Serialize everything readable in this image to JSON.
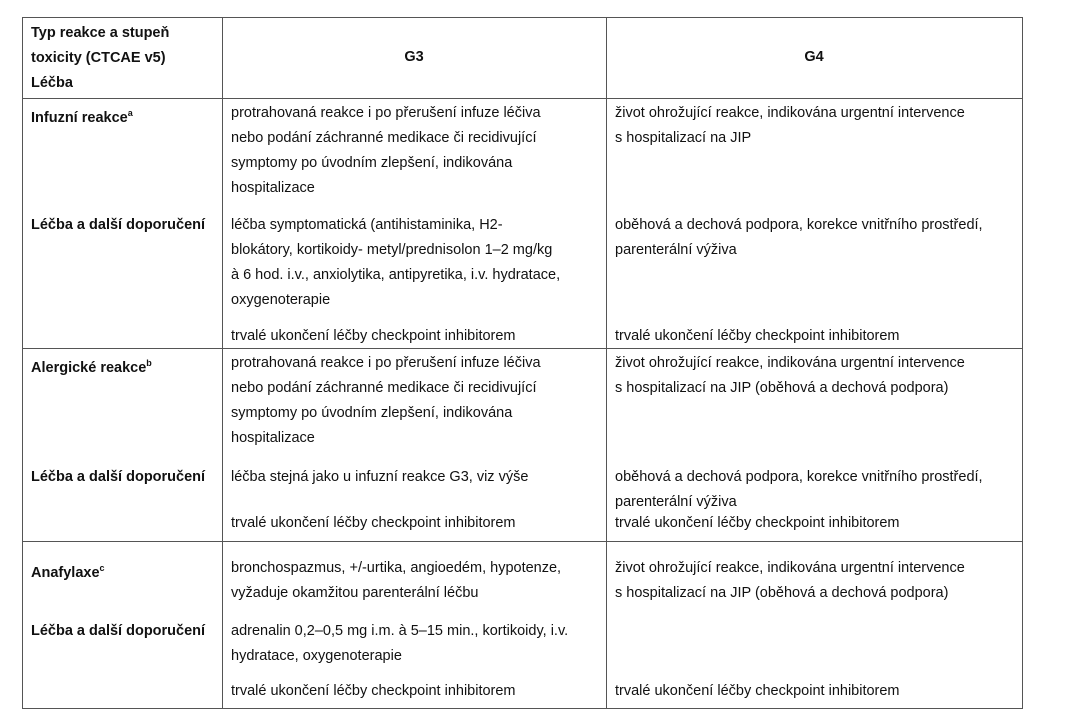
{
  "header": {
    "col1": [
      "Typ reakce  a stupeň",
      "toxicity (CTCAE v5)",
      "Léčba"
    ],
    "g3": "G3",
    "g4": "G4"
  },
  "rows": [
    {
      "name": "Infuzní reakce",
      "sup": "a",
      "treatment_label": "Léčba a další doporučení",
      "g3_desc": [
        "protrahovaná reakce i po  přerušení infuze léčiva",
        "nebo podání záchranné medikace či recidivující",
        "symptomy po úvodním zlepšení, indikována",
        "hospitalizace"
      ],
      "g4_desc": [
        "život ohrožující reakce, indikována urgentní intervence",
        "s hospitalizací na JIP"
      ],
      "g3_treat": [
        "léčba symptomatická (antihistaminika, H2-",
        "blokátory, kortikoidy- metyl/prednisolon 1–2 mg/kg",
        "à 6 hod. i.v., anxiolytika, antipyretika, i.v. hydratace,",
        "oxygenoterapie"
      ],
      "g4_treat": [
        "oběhová a dechová podpora, korekce vnitřního prostředí,",
        "parenterální výživa"
      ],
      "g3_stop": "trvalé ukončení léčby checkpoint inhibitorem",
      "g4_stop": "trvalé ukončení léčby checkpoint inhibitorem"
    },
    {
      "name": "Alergické reakce",
      "sup": "b",
      "treatment_label": "Léčba a další doporučení",
      "g3_desc": [
        "protrahovaná reakce i po  přerušení infuze léčiva",
        "nebo podání záchranné medikace či recidivující",
        "symptomy po úvodním zlepšení, indikována",
        "hospitalizace"
      ],
      "g4_desc": [
        "život ohrožující reakce, indikována urgentní intervence",
        "s hospitalizací na JIP (oběhová a dechová podpora)"
      ],
      "g3_treat": [
        "léčba stejná jako u infuzní reakce G3, viz výše"
      ],
      "g4_treat": [
        "oběhová a dechová podpora, korekce vnitřního prostředí,",
        "parenterální výživa"
      ],
      "g3_stop": "trvalé ukončení léčby checkpoint inhibitorem",
      "g4_stop": "trvalé ukončení léčby checkpoint inhibitorem"
    },
    {
      "name": "Anafylaxe",
      "sup": "c",
      "treatment_label": "Léčba a další doporučení",
      "g3_desc": [
        "bronchospazmus, +/-urtika, angioedém, hypotenze,",
        "vyžaduje okamžitou parenterální léčbu"
      ],
      "g4_desc": [
        "život ohrožující reakce, indikována urgentní intervence",
        "s hospitalizací na JIP (oběhová a dechová podpora)"
      ],
      "g3_treat": [
        "adrenalin 0,2–0,5 mg i.m. à 5–15 min., kortikoidy, i.v.",
        "hydratace, oxygenoterapie"
      ],
      "g4_treat": [],
      "g3_stop": "trvalé ukončení léčby checkpoint inhibitorem",
      "g4_stop": "trvalé ukončení léčby checkpoint inhibitorem"
    }
  ]
}
